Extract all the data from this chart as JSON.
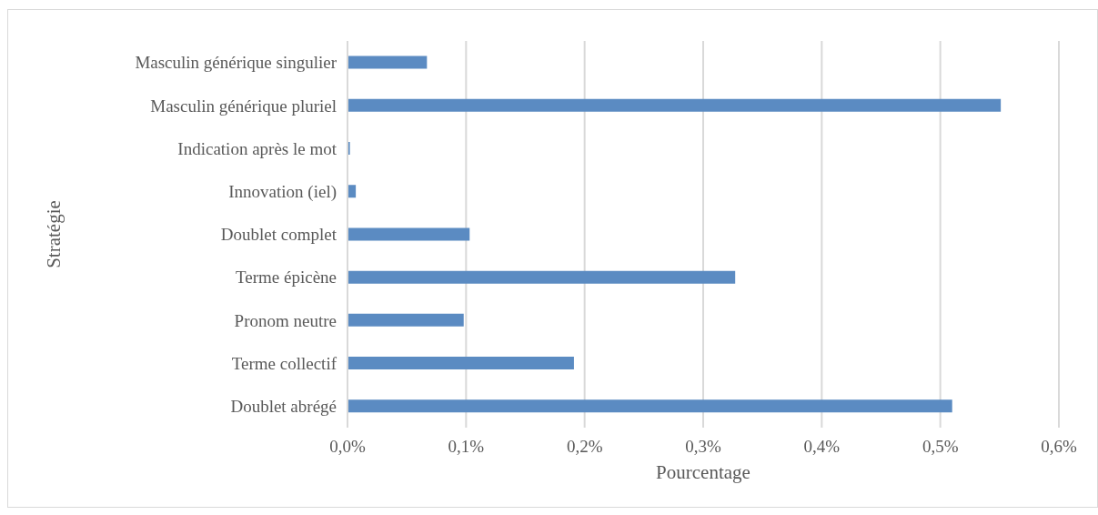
{
  "chart_data": {
    "type": "bar",
    "orientation": "horizontal",
    "xlabel": "Pourcentage",
    "ylabel": "Stratégie",
    "categories": [
      "Masculin générique singulier",
      "Masculin générique pluriel",
      "Indication après le mot",
      "Innovation (iel)",
      "Doublet complet",
      "Terme épicène",
      "Pronom neutre",
      "Terme collectif",
      "Doublet abrégé"
    ],
    "values": [
      0.067,
      0.551,
      0.002,
      0.007,
      0.103,
      0.327,
      0.098,
      0.191,
      0.51
    ],
    "color": "#5b8bc2",
    "xlim": [
      0,
      0.6
    ],
    "xticks": [
      {
        "value": 0,
        "label": "0,0%"
      },
      {
        "value": 0.1,
        "label": "0,1%"
      },
      {
        "value": 0.2,
        "label": "0,2%"
      },
      {
        "value": 0.3,
        "label": "0,3%"
      },
      {
        "value": 0.4,
        "label": "0,4%"
      },
      {
        "value": 0.5,
        "label": "0,5%"
      },
      {
        "value": 0.6,
        "label": "0,6%"
      }
    ],
    "grid": "x",
    "legend": false
  }
}
